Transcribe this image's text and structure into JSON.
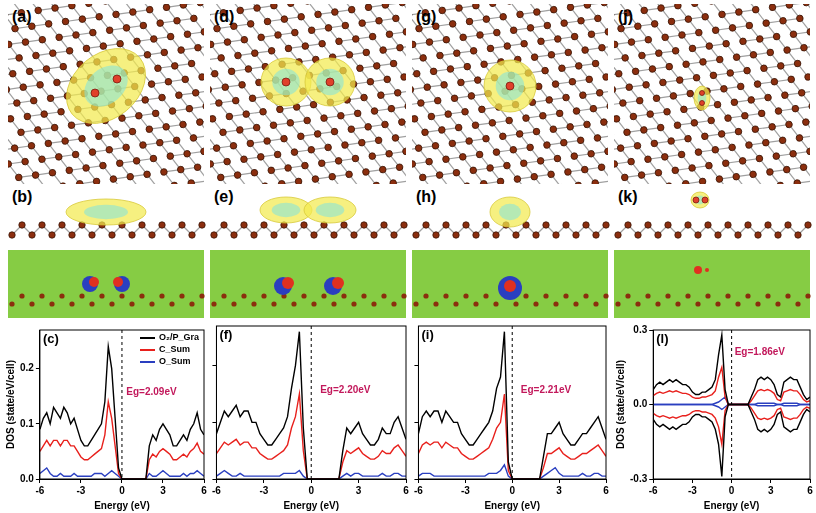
{
  "structures": [
    {
      "top_label": "(a)",
      "side_label": "(b)"
    },
    {
      "top_label": "(d)",
      "side_label": "(e)"
    },
    {
      "top_label": "(g)",
      "side_label": "(h)"
    },
    {
      "top_label": "(j)",
      "side_label": "(k)"
    }
  ],
  "chart_data": [
    {
      "type": "line",
      "label": "(c)",
      "x": [
        -6,
        -5.75,
        -5.5,
        -5.25,
        -5,
        -4.75,
        -4.5,
        -4.25,
        -4,
        -3.75,
        -3.5,
        -3.25,
        -3,
        -2.75,
        -2.5,
        -2.25,
        -2,
        -1.75,
        -1.5,
        -1.25,
        -1,
        -0.75,
        -0.5,
        -0.25,
        0,
        0.25,
        0.5,
        0.75,
        1,
        1.25,
        1.5,
        1.75,
        2,
        2.25,
        2.5,
        2.75,
        3,
        3.25,
        3.5,
        3.75,
        4,
        4.25,
        4.5,
        4.75,
        5,
        5.25,
        5.5,
        5.75,
        6
      ],
      "series": [
        {
          "name": "O₂/P_Gra",
          "color": "#000000",
          "values": [
            0.09,
            0.11,
            0.12,
            0.1,
            0.13,
            0.12,
            0.11,
            0.13,
            0.12,
            0.1,
            0.11,
            0.09,
            0.07,
            0.06,
            0.06,
            0.07,
            0.08,
            0.09,
            0.1,
            0.14,
            0.24,
            0.2,
            0.11,
            0.02,
            0,
            0,
            0,
            0,
            0,
            0,
            0,
            0,
            0.06,
            0.08,
            0.07,
            0.09,
            0.1,
            0.09,
            0.08,
            0.06,
            0.06,
            0.07,
            0.08,
            0.07,
            0.09,
            0.1,
            0.12,
            0.09,
            0.08
          ]
        },
        {
          "name": "C_Sum",
          "color": "#e8201c",
          "values": [
            0.05,
            0.06,
            0.07,
            0.06,
            0.07,
            0.07,
            0.06,
            0.07,
            0.07,
            0.06,
            0.06,
            0.05,
            0.04,
            0.035,
            0.035,
            0.04,
            0.045,
            0.05,
            0.055,
            0.08,
            0.14,
            0.11,
            0.06,
            0.01,
            0,
            0,
            0,
            0,
            0,
            0,
            0,
            0,
            0.035,
            0.045,
            0.04,
            0.05,
            0.055,
            0.05,
            0.045,
            0.035,
            0.035,
            0.04,
            0.045,
            0.04,
            0.05,
            0.055,
            0.065,
            0.05,
            0.045
          ]
        },
        {
          "name": "O_Sum",
          "color": "#2a3fc0",
          "values": [
            0.01,
            0.015,
            0.02,
            0.01,
            0.005,
            0.005,
            0.01,
            0.005,
            0.005,
            0.005,
            0.01,
            0.005,
            0.005,
            0.005,
            0.005,
            0.005,
            0.01,
            0.01,
            0.01,
            0.005,
            0.01,
            0.015,
            0.01,
            0.005,
            0,
            0,
            0,
            0,
            0,
            0,
            0,
            0,
            0.01,
            0.005,
            0.005,
            0.01,
            0.015,
            0.01,
            0.005,
            0.005,
            0.005,
            0.005,
            0.01,
            0.005,
            0.01,
            0.01,
            0.015,
            0.01,
            0.005
          ]
        }
      ],
      "xlim": [
        -6,
        6
      ],
      "xticks": [
        -6,
        -3,
        0,
        3,
        6
      ],
      "ylim": [
        0,
        0.27
      ],
      "yticks": [
        {
          "value": 0,
          "label": "0.0"
        },
        0.1,
        0.2
      ],
      "xlabel": "Energy (eV)",
      "ylabel": "DOS (state/eV/cell)",
      "annotation": "Eg=2.09eV",
      "fermi_level": 0,
      "legend": "upper right",
      "grid": false
    },
    {
      "type": "line",
      "label": "(f)",
      "x": [
        -6,
        -5.75,
        -5.5,
        -5.25,
        -5,
        -4.75,
        -4.5,
        -4.25,
        -4,
        -3.75,
        -3.5,
        -3.25,
        -3,
        -2.75,
        -2.5,
        -2.25,
        -2,
        -1.75,
        -1.5,
        -1.25,
        -1,
        -0.75,
        -0.5,
        -0.25,
        0,
        0.25,
        0.5,
        0.75,
        1,
        1.25,
        1.5,
        1.75,
        2,
        2.25,
        2.5,
        2.75,
        3,
        3.25,
        3.5,
        3.75,
        4,
        4.25,
        4.5,
        4.75,
        5,
        5.25,
        5.5,
        5.75,
        6
      ],
      "series": [
        {
          "color": "#000000",
          "values": [
            0.08,
            0.1,
            0.12,
            0.11,
            0.12,
            0.13,
            0.11,
            0.12,
            0.12,
            0.1,
            0.1,
            0.08,
            0.07,
            0.06,
            0.06,
            0.07,
            0.08,
            0.09,
            0.11,
            0.16,
            0.2,
            0.26,
            0.09,
            0,
            0,
            0,
            0,
            0,
            0,
            0,
            0,
            0,
            0.05,
            0.09,
            0.08,
            0.09,
            0.1,
            0.08,
            0.07,
            0.06,
            0.06,
            0.07,
            0.09,
            0.08,
            0.08,
            0.1,
            0.11,
            0.09,
            0.07
          ]
        },
        {
          "color": "#e8201c",
          "values": [
            0.045,
            0.055,
            0.065,
            0.06,
            0.065,
            0.07,
            0.06,
            0.065,
            0.065,
            0.055,
            0.055,
            0.045,
            0.04,
            0.035,
            0.035,
            0.04,
            0.045,
            0.05,
            0.06,
            0.09,
            0.11,
            0.15,
            0.05,
            0,
            0,
            0,
            0,
            0,
            0,
            0,
            0,
            0,
            0.03,
            0.05,
            0.045,
            0.05,
            0.055,
            0.045,
            0.04,
            0.035,
            0.035,
            0.04,
            0.05,
            0.045,
            0.045,
            0.055,
            0.06,
            0.05,
            0.04
          ]
        },
        {
          "color": "#2a3fc0",
          "values": [
            0.005,
            0.01,
            0.015,
            0.01,
            0.005,
            0.005,
            0.01,
            0.005,
            0.005,
            0.005,
            0.005,
            0.005,
            0.005,
            0.005,
            0.005,
            0.005,
            0.005,
            0.01,
            0.01,
            0.01,
            0.01,
            0.015,
            0.005,
            0,
            0,
            0,
            0,
            0,
            0,
            0,
            0,
            0,
            0.005,
            0.01,
            0.005,
            0.01,
            0.01,
            0.005,
            0.005,
            0.005,
            0.005,
            0.005,
            0.01,
            0.005,
            0.005,
            0.01,
            0.01,
            0.005,
            0.005
          ]
        }
      ],
      "xlim": [
        -6,
        6
      ],
      "xticks": [
        -6,
        -3,
        0,
        3,
        6
      ],
      "ylim": [
        0,
        0.27
      ],
      "yticks": [
        0,
        0.1,
        0.2
      ],
      "xlabel": "Energy (eV)",
      "annotation": "Eg=2.20eV",
      "fermi_level": 0,
      "tick_labels": "x",
      "grid": false
    },
    {
      "type": "line",
      "label": "(i)",
      "x": [
        -6,
        -5.75,
        -5.5,
        -5.25,
        -5,
        -4.75,
        -4.5,
        -4.25,
        -4,
        -3.75,
        -3.5,
        -3.25,
        -3,
        -2.75,
        -2.5,
        -2.25,
        -2,
        -1.75,
        -1.5,
        -1.25,
        -1,
        -0.75,
        -0.5,
        -0.25,
        0,
        0.25,
        0.5,
        0.75,
        1,
        1.25,
        1.5,
        1.75,
        2,
        2.25,
        2.5,
        2.75,
        3,
        3.25,
        3.5,
        3.75,
        4,
        4.25,
        4.5,
        4.75,
        5,
        5.25,
        5.5,
        5.75,
        6
      ],
      "series": [
        {
          "color": "#000000",
          "values": [
            0.08,
            0.11,
            0.12,
            0.11,
            0.12,
            0.12,
            0.1,
            0.12,
            0.11,
            0.1,
            0.1,
            0.08,
            0.07,
            0.06,
            0.06,
            0.07,
            0.08,
            0.09,
            0.1,
            0.12,
            0.16,
            0.18,
            0.26,
            0.03,
            0,
            0,
            0,
            0,
            0,
            0,
            0,
            0,
            0.04,
            0.08,
            0.08,
            0.09,
            0.1,
            0.08,
            0.07,
            0.06,
            0.06,
            0.07,
            0.08,
            0.08,
            0.09,
            0.1,
            0.11,
            0.09,
            0.07
          ]
        },
        {
          "color": "#e8201c",
          "values": [
            0.045,
            0.06,
            0.065,
            0.06,
            0.065,
            0.065,
            0.055,
            0.065,
            0.06,
            0.055,
            0.055,
            0.045,
            0.04,
            0.035,
            0.035,
            0.04,
            0.045,
            0.05,
            0.055,
            0.07,
            0.09,
            0.1,
            0.15,
            0.015,
            0,
            0,
            0,
            0,
            0,
            0,
            0,
            0,
            0.02,
            0.045,
            0.045,
            0.05,
            0.055,
            0.045,
            0.04,
            0.035,
            0.035,
            0.04,
            0.045,
            0.045,
            0.05,
            0.055,
            0.06,
            0.05,
            0.04
          ]
        },
        {
          "color": "#2a3fc0",
          "values": [
            0.005,
            0.01,
            0.01,
            0.01,
            0.005,
            0.005,
            0.005,
            0.005,
            0.005,
            0.005,
            0.005,
            0.005,
            0.005,
            0.005,
            0.005,
            0.005,
            0.005,
            0.005,
            0.01,
            0.01,
            0.01,
            0.015,
            0.025,
            0.005,
            0,
            0,
            0,
            0,
            0,
            0,
            0,
            0,
            0.005,
            0.01,
            0.015,
            0.02,
            0.01,
            0.005,
            0.005,
            0.005,
            0.005,
            0.005,
            0.01,
            0.005,
            0.005,
            0.01,
            0.01,
            0.005,
            0.005
          ]
        }
      ],
      "xlim": [
        -6,
        6
      ],
      "xticks": [
        -6,
        -3,
        0,
        3,
        6
      ],
      "ylim": [
        0,
        0.27
      ],
      "yticks": [
        0,
        0.1,
        0.2
      ],
      "xlabel": "Energy (eV)",
      "annotation": "Eg=2.21eV",
      "fermi_level": 0,
      "tick_labels": "x",
      "grid": false
    },
    {
      "type": "line",
      "label": "(l)",
      "x": [
        -6,
        -5.75,
        -5.5,
        -5.25,
        -5,
        -4.75,
        -4.5,
        -4.25,
        -4,
        -3.75,
        -3.5,
        -3.25,
        -3,
        -2.75,
        -2.5,
        -2.25,
        -2,
        -1.75,
        -1.5,
        -1.25,
        -1,
        -0.75,
        -0.5,
        -0.25,
        0,
        0.25,
        0.5,
        0.75,
        1,
        1.25,
        1.5,
        1.75,
        2,
        2.25,
        2.5,
        2.75,
        3,
        3.25,
        3.5,
        3.75,
        4,
        4.25,
        4.5,
        4.75,
        5,
        5.25,
        5.5,
        5.75,
        6
      ],
      "series": [
        {
          "color": "#000000",
          "values": [
            0.06,
            0.08,
            0.09,
            0.08,
            0.09,
            0.1,
            0.09,
            0.1,
            0.09,
            0.08,
            0.08,
            0.07,
            0.05,
            0.04,
            0.04,
            0.05,
            0.05,
            0.06,
            0.07,
            0.1,
            0.2,
            0.28,
            0.06,
            0,
            0,
            0,
            0,
            0,
            0,
            0,
            0.03,
            0.06,
            0.1,
            0.11,
            0.1,
            0.11,
            0.1,
            0.08,
            0.04,
            0.03,
            0.09,
            0.1,
            0.11,
            0.1,
            0.1,
            0.07,
            0.04,
            0.02,
            0.03
          ]
        },
        {
          "color": "#000000",
          "values": [
            -0.06,
            -0.08,
            -0.09,
            -0.08,
            -0.09,
            -0.1,
            -0.09,
            -0.1,
            -0.09,
            -0.08,
            -0.08,
            -0.07,
            -0.05,
            -0.04,
            -0.04,
            -0.05,
            -0.05,
            -0.06,
            -0.07,
            -0.1,
            -0.16,
            -0.29,
            -0.05,
            0,
            0,
            0,
            0,
            0,
            0,
            0,
            -0.03,
            -0.06,
            -0.1,
            -0.11,
            -0.1,
            -0.11,
            -0.1,
            -0.08,
            -0.04,
            -0.03,
            -0.09,
            -0.1,
            -0.11,
            -0.1,
            -0.1,
            -0.07,
            -0.04,
            -0.02,
            -0.03
          ]
        },
        {
          "color": "#e8201c",
          "values": [
            0.035,
            0.045,
            0.05,
            0.045,
            0.05,
            0.055,
            0.05,
            0.055,
            0.05,
            0.045,
            0.045,
            0.04,
            0.03,
            0.025,
            0.025,
            0.03,
            0.03,
            0.035,
            0.04,
            0.055,
            0.11,
            0.15,
            0.03,
            0,
            0,
            0,
            0,
            0,
            0,
            0,
            0.015,
            0.035,
            0.055,
            0.06,
            0.055,
            0.06,
            0.055,
            0.045,
            0.02,
            0.015,
            0.05,
            0.055,
            0.06,
            0.055,
            0.055,
            0.04,
            0.02,
            0.01,
            0.015
          ]
        },
        {
          "color": "#e8201c",
          "values": [
            -0.035,
            -0.045,
            -0.05,
            -0.045,
            -0.05,
            -0.055,
            -0.05,
            -0.055,
            -0.05,
            -0.045,
            -0.045,
            -0.04,
            -0.03,
            -0.025,
            -0.025,
            -0.03,
            -0.03,
            -0.035,
            -0.04,
            -0.055,
            -0.09,
            -0.16,
            -0.025,
            0,
            0,
            0,
            0,
            0,
            0,
            0,
            -0.015,
            -0.035,
            -0.055,
            -0.06,
            -0.055,
            -0.06,
            -0.055,
            -0.045,
            -0.02,
            -0.015,
            -0.05,
            -0.055,
            -0.06,
            -0.055,
            -0.055,
            -0.04,
            -0.02,
            -0.01,
            -0.015
          ]
        },
        {
          "color": "#2a3fc0",
          "values": [
            0,
            0,
            0,
            0,
            0,
            0,
            0,
            0,
            0,
            0,
            0,
            0,
            0,
            0,
            0,
            0,
            0,
            0,
            0,
            0.005,
            0.01,
            0.02,
            0.03,
            0,
            0,
            0,
            0,
            0,
            0,
            0,
            0,
            0,
            0.005,
            0.005,
            0.005,
            0.005,
            0.005,
            0.005,
            0,
            0,
            0.005,
            0.005,
            0.005,
            0.005,
            0.005,
            0,
            0,
            0,
            0
          ]
        },
        {
          "color": "#2a3fc0",
          "values": [
            0,
            0,
            0,
            0,
            0,
            0,
            0,
            0,
            0,
            0,
            0,
            0,
            0,
            0,
            0,
            0,
            0,
            0,
            0,
            -0.005,
            -0.01,
            -0.02,
            -0.01,
            0,
            0,
            0,
            0,
            0,
            0,
            0,
            0,
            0,
            -0.005,
            -0.005,
            -0.005,
            -0.005,
            -0.005,
            -0.005,
            0,
            0,
            -0.005,
            -0.005,
            -0.005,
            -0.005,
            -0.005,
            0,
            0,
            0,
            0
          ]
        }
      ],
      "xlim": [
        -6,
        6
      ],
      "xticks": [
        -6,
        -3,
        0,
        3,
        6
      ],
      "ylim": [
        -0.3,
        0.3
      ],
      "yticks": [
        -0.3,
        {
          "value": 0,
          "label": "0.0"
        },
        0.3
      ],
      "xlabel": "Energy (eV)",
      "ylabel": "DOS (state/eV/cell)",
      "annotation": "Eg=1.86eV",
      "fermi_level": 0,
      "grid": false
    }
  ]
}
